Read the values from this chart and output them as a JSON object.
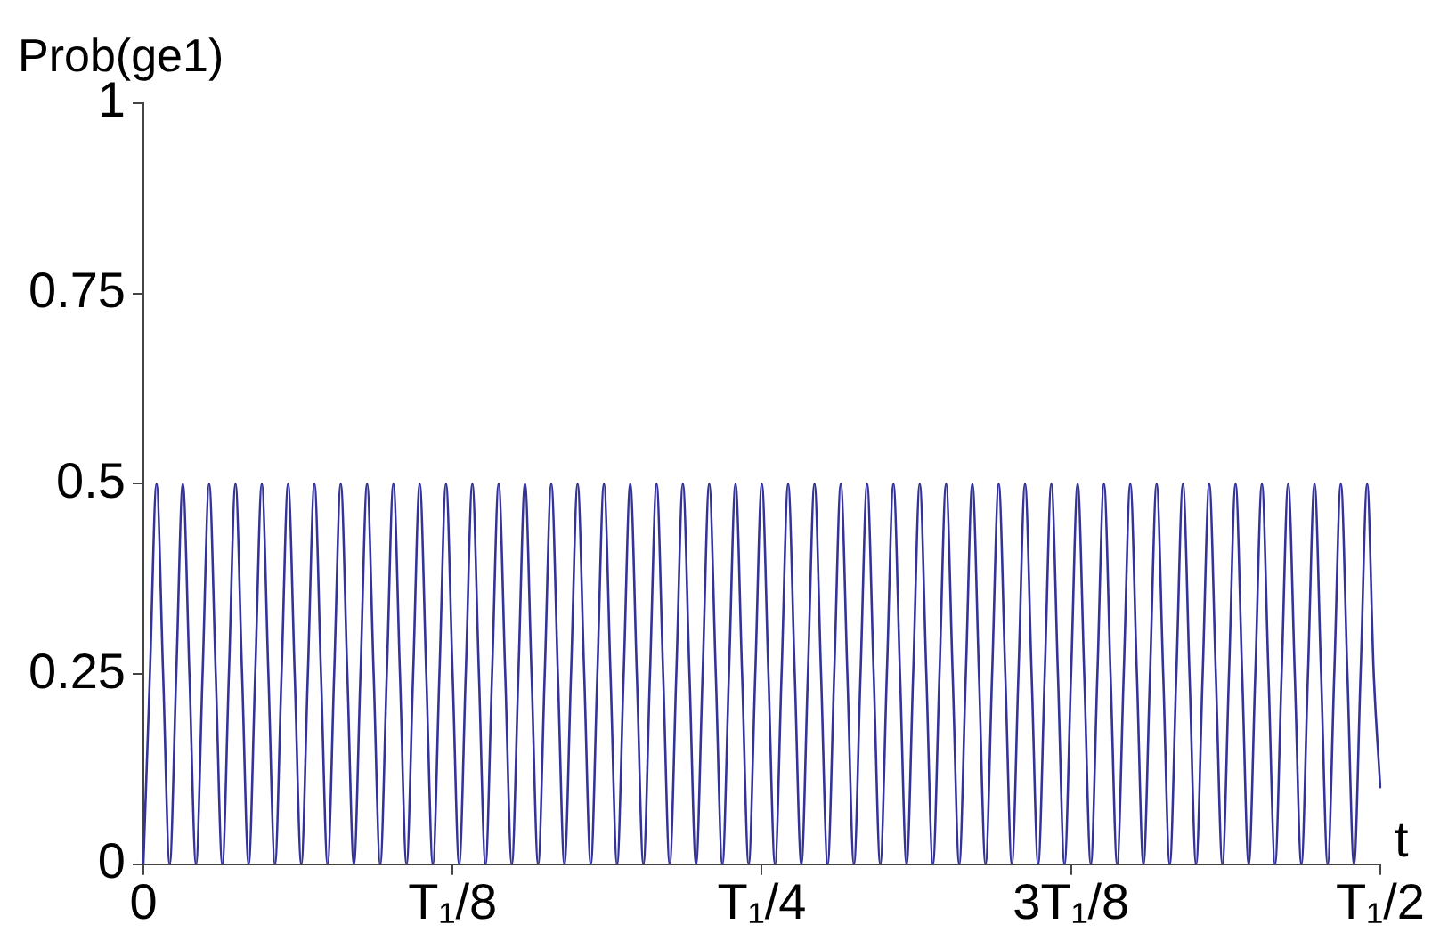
{
  "chart_data": {
    "type": "line",
    "ylabel": "Prob(ge1)",
    "xlabel": "t",
    "categories": [
      "0",
      null,
      null,
      null,
      null,
      null,
      null,
      null,
      null,
      null,
      null,
      null,
      null,
      null,
      null,
      null,
      null,
      null,
      null,
      null,
      null,
      null,
      null,
      null,
      null,
      null,
      null,
      null,
      null,
      null,
      null,
      null,
      null,
      null,
      null,
      null,
      null,
      null,
      null,
      null,
      null,
      null,
      null,
      null,
      null,
      null,
      null,
      "T₁/8",
      null,
      null,
      null,
      null,
      null,
      null,
      null,
      null,
      null,
      null,
      null,
      null,
      null,
      null,
      null,
      null,
      null,
      null,
      null,
      null,
      null,
      null,
      null,
      null,
      null,
      null,
      null,
      null,
      null,
      null,
      null,
      null,
      null,
      null,
      null,
      null,
      null,
      null,
      null,
      null,
      null,
      null,
      null,
      null,
      null,
      null,
      "T₁/4",
      null,
      null,
      null,
      null,
      null,
      null,
      null,
      null,
      null,
      null,
      null,
      null,
      null,
      null,
      null,
      null,
      null,
      null,
      null,
      null,
      null,
      null,
      null,
      null,
      null,
      null,
      null,
      null,
      null,
      null,
      null,
      null,
      null,
      null,
      null,
      null,
      null,
      null,
      null,
      null,
      null,
      null,
      null,
      null,
      null,
      null,
      "3T₁/8",
      null,
      null,
      null,
      null,
      null,
      null,
      null,
      null,
      null,
      null,
      null,
      null,
      null,
      null,
      null,
      null,
      null,
      null,
      null,
      null,
      null,
      null,
      null,
      null,
      null,
      null,
      null,
      null,
      null,
      null,
      null,
      null,
      null,
      null,
      null,
      null,
      null,
      null,
      null,
      null,
      null,
      null,
      null,
      null,
      null,
      null,
      "T₁/2"
    ],
    "ylim": [
      0,
      1
    ],
    "yticks": [
      0,
      0.25,
      0.5,
      0.75,
      1
    ],
    "grid": false,
    "legend": false,
    "marker": "none",
    "line_style": "solid",
    "series": [
      {
        "color": "#333399",
        "values": [
          0,
          0.25,
          0.5,
          0.25,
          0,
          0.25,
          0.5,
          0.25,
          0,
          0.25,
          0.5,
          0.25,
          0,
          0.25,
          0.5,
          0.25,
          0,
          0.25,
          0.5,
          0.25,
          0,
          0.25,
          0.5,
          0.25,
          0,
          0.25,
          0.5,
          0.25,
          0,
          0.25,
          0.5,
          0.25,
          0,
          0.25,
          0.5,
          0.25,
          0,
          0.25,
          0.5,
          0.25,
          0,
          0.25,
          0.5,
          0.25,
          0,
          0.25,
          0.5,
          0.25,
          0,
          0.25,
          0.5,
          0.25,
          0,
          0.25,
          0.5,
          0.25,
          0,
          0.25,
          0.5,
          0.25,
          0,
          0.25,
          0.5,
          0.25,
          0,
          0.25,
          0.5,
          0.25,
          0,
          0.25,
          0.5,
          0.25,
          0,
          0.25,
          0.5,
          0.25,
          0,
          0.25,
          0.5,
          0.25,
          0,
          0.25,
          0.5,
          0.25,
          0,
          0.25,
          0.5,
          0.25,
          0,
          0.25,
          0.5,
          0.25,
          0,
          0.25,
          0.5,
          0.25,
          0,
          0.25,
          0.5,
          0.25,
          0,
          0.25,
          0.5,
          0.25,
          0,
          0.25,
          0.5,
          0.25,
          0,
          0.25,
          0.5,
          0.25,
          0,
          0.25,
          0.5,
          0.25,
          0,
          0.25,
          0.5,
          0.25,
          0,
          0.25,
          0.5,
          0.25,
          0,
          0.25,
          0.5,
          0.25,
          0,
          0.25,
          0.5,
          0.25,
          0,
          0.25,
          0.5,
          0.25,
          0,
          0.25,
          0.5,
          0.25,
          0,
          0.25,
          0.5,
          0.25,
          0,
          0.25,
          0.5,
          0.25,
          0,
          0.25,
          0.5,
          0.25,
          0,
          0.25,
          0.5,
          0.25,
          0,
          0.25,
          0.5,
          0.25,
          0,
          0.25,
          0.5,
          0.25,
          0,
          0.25,
          0.5,
          0.25,
          0,
          0.25,
          0.5,
          0.25,
          0,
          0.25,
          0.5,
          0.25,
          0,
          0.25,
          0.5,
          0.25,
          0,
          0.25,
          0.5,
          0.25,
          0,
          0.25,
          0.5,
          0.25,
          0.1
        ]
      }
    ]
  }
}
